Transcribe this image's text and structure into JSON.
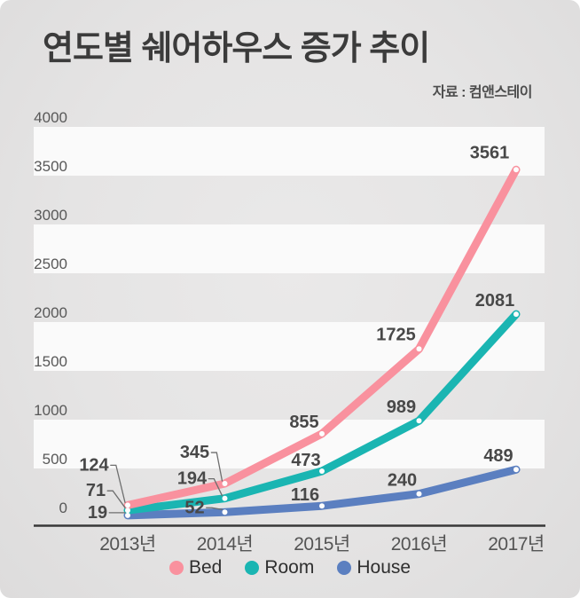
{
  "title": "연도별 쉐어하우스 증가 추이",
  "source": "자료 : 컴앤스테이",
  "colors": {
    "background": "#e6e5e5",
    "stripe": "#fafafa",
    "axis": "#383838",
    "bed": "#f9919e",
    "room": "#1ab5b2",
    "house": "#5b7fc0",
    "marker": "#fdfdfd",
    "leader": "#6e6e6e"
  },
  "chart_data": {
    "type": "line",
    "categories": [
      "2013년",
      "2014년",
      "2015년",
      "2016년",
      "2017년"
    ],
    "series": [
      {
        "name": "Bed",
        "color": "#f9919e",
        "values": [
          124,
          345,
          855,
          1725,
          3561
        ]
      },
      {
        "name": "Room",
        "color": "#1ab5b2",
        "values": [
          71,
          194,
          473,
          989,
          2081
        ]
      },
      {
        "name": "House",
        "color": "#5b7fc0",
        "values": [
          19,
          52,
          116,
          240,
          489
        ]
      }
    ],
    "title": "연도별 쉐어하우스 증가 추이",
    "xlabel": "",
    "ylabel": "",
    "ylim": [
      0,
      4000
    ],
    "yticks": [
      0,
      500,
      1000,
      1500,
      2000,
      2500,
      3000,
      3500,
      4000
    ],
    "grid": "striped-bands",
    "show_data_labels": true,
    "legend_position": "bottom"
  }
}
